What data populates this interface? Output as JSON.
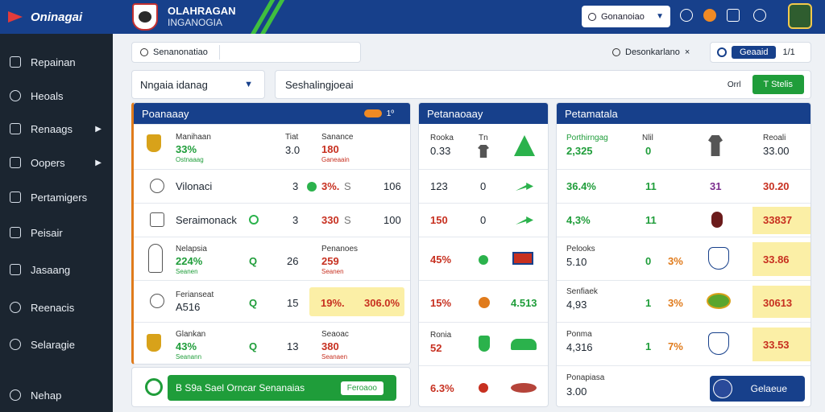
{
  "app": {
    "logo": "Oninagai"
  },
  "header": {
    "brand": "OLAHRAGAN",
    "brand_sub": "INGANOGIA",
    "search_label": "Gonanoiao"
  },
  "sidebar": {
    "items": [
      {
        "label": "Repainan",
        "icon": "home-icon"
      },
      {
        "label": "Heoals",
        "icon": "check-circle-icon"
      },
      {
        "label": "Renaags",
        "icon": "share-icon",
        "has_children": true
      },
      {
        "label": "Oopers",
        "icon": "document-icon",
        "has_children": true
      },
      {
        "label": "Pertamigers",
        "icon": "list-icon"
      },
      {
        "label": "Peisair",
        "icon": "export-icon"
      },
      {
        "label": "Jasaang",
        "icon": "share-icon"
      },
      {
        "label": "Reenacis",
        "icon": "settings-icon"
      },
      {
        "label": "Selaragie",
        "icon": "gear-icon"
      },
      {
        "label": "Nehap",
        "icon": "help-icon"
      }
    ]
  },
  "search": {
    "placeholder": "Senanonatiao"
  },
  "top_right": {
    "label1": "Desonkarlano",
    "close": "×",
    "toggle_label": "Geaaid",
    "toggle_ext": "1/1"
  },
  "selector": {
    "value": "Nngaia idanag"
  },
  "filter": {
    "value": "Seshalingjoeai",
    "small": "Orrl",
    "button": "T Stelis"
  },
  "panel1": {
    "title": "Poanaaay",
    "toggle_text": "1º",
    "rows": [
      {
        "label": "Manihaan",
        "pct": "33%",
        "sub": "Ostnaaag",
        "c2": "Tiat",
        "n": "3.0",
        "c3": "Sanance",
        "red": "180",
        "red_sub": "Ganeaain",
        "icon": "trophy-icon"
      },
      {
        "label": "Vilonaci",
        "n": "3",
        "pct_o": "3%.",
        "s": "S",
        "big": "106",
        "icon": "badge-icon"
      },
      {
        "label": "Seraimonack",
        "n": "3",
        "pct_o": "330",
        "s": "S",
        "big": "100",
        "icon": "badge-icon"
      },
      {
        "label": "Nelapsia",
        "pct": "224%",
        "sub": "Seanen",
        "q": "Q",
        "n": "26",
        "c3": "Penanoes",
        "red": "259",
        "red_sub": "Seanen",
        "icon": "figure-icon"
      },
      {
        "label": "Ferianseat",
        "sub_big": "A516",
        "q": "Q",
        "n": "15",
        "hl1": "19%.",
        "hl2": "306.0%",
        "icon": "badge-icon"
      },
      {
        "label": "Glankan",
        "pct": "43%",
        "sub": "Seanann",
        "q": "Q",
        "n": "13",
        "c3": "Seaoac",
        "red": "380",
        "red_sub": "Seanaen",
        "icon": "trophy-icon"
      }
    ],
    "ribbon": {
      "text": "B S9a Sael Orncar Senanaias",
      "tag": "Feroaoo"
    }
  },
  "panel2": {
    "title": "Petanaoaay",
    "rows": [
      {
        "label": "Rooka",
        "val": "0.33",
        "c2": "Tn",
        "icon": "shirt-icon"
      },
      {
        "val": "123",
        "n": "0",
        "icon": "arrow-icon"
      },
      {
        "val": "150",
        "n": "0",
        "icon": "arrow-icon"
      },
      {
        "val": "45%",
        "icon": "flag-icon"
      },
      {
        "val": "15%",
        "extra": "4.513",
        "icon": "ring-icon"
      },
      {
        "label": "Ronia",
        "val": "52",
        "icon": "shield-icon"
      },
      {
        "val": "6.3%",
        "icon": "ball-icon"
      }
    ]
  },
  "panel3": {
    "title": "Petamatala",
    "rows": [
      {
        "label": "Porthirngag",
        "val": "2,325",
        "c2": "Nlil",
        "n": "0",
        "c3": "Reoali",
        "val2": "33.00",
        "icon": "shirt-icon"
      },
      {
        "val": "36.4%",
        "n": "11",
        "n2": "31",
        "val2": "30.20"
      },
      {
        "val": "4,3%",
        "n": "11",
        "val2": "33837",
        "icon": "shield-icon"
      },
      {
        "label": "Pelooks",
        "val": "5.10",
        "n": "0",
        "pct": "3%",
        "val2": "33.86",
        "icon": "crest-icon"
      },
      {
        "label": "Senfiaek",
        "val": "4,93",
        "n": "1",
        "pct": "3%",
        "val2": "30613",
        "icon": "ball-icon"
      },
      {
        "label": "Ponma",
        "val": "4,316",
        "n": "1",
        "pct": "7%",
        "val2": "33.53",
        "icon": "crest-icon"
      },
      {
        "label": "Ponapiasa",
        "val": "3.00",
        "btn": "Gelaeue",
        "icon": "crest-icon"
      }
    ]
  }
}
